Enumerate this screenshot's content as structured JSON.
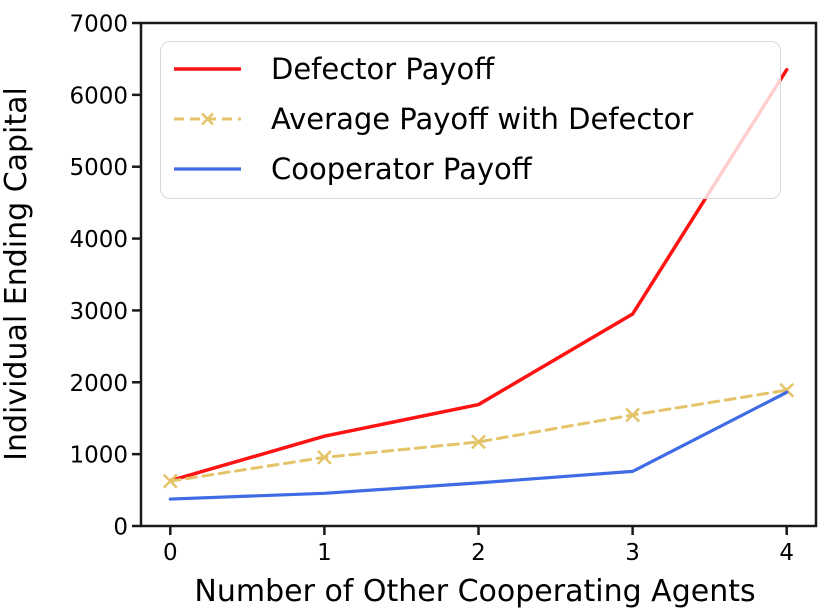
{
  "figure": {
    "background": "#ffffff",
    "axis_color": "#1a1a1a",
    "legend_border_color": "#d9d9d9"
  },
  "chart_data": {
    "type": "line",
    "title": "",
    "xlabel": "Number of Other Cooperating Agents",
    "ylabel": "Individual Ending Capital",
    "x": [
      0,
      1,
      2,
      3,
      4
    ],
    "xlim": [
      -0.19,
      4.19
    ],
    "ylim": [
      0,
      7000
    ],
    "xticks": [
      0,
      1,
      2,
      3,
      4
    ],
    "yticks": [
      0,
      1000,
      2000,
      3000,
      4000,
      5000,
      6000,
      7000
    ],
    "xtick_labels": [
      "0",
      "1",
      "2",
      "3",
      "4"
    ],
    "ytick_labels": [
      "0",
      "1000",
      "2000",
      "3000",
      "4000",
      "5000",
      "6000",
      "7000"
    ],
    "grid": false,
    "legend_position": "upper left",
    "series": [
      {
        "name": "Defector Payoff",
        "color": "#ff1212",
        "style": "solid",
        "marker": "none",
        "values": [
          630,
          1250,
          1690,
          2950,
          6350
        ]
      },
      {
        "name": "Average Payoff with Defector",
        "color": "#e5c469",
        "style": "dashed",
        "marker": "x",
        "values": [
          625,
          955,
          1170,
          1545,
          1890
        ]
      },
      {
        "name": "Cooperator Payoff",
        "color": "#3f6be4",
        "style": "solid",
        "marker": "none",
        "values": [
          375,
          455,
          600,
          760,
          1860
        ]
      }
    ]
  }
}
